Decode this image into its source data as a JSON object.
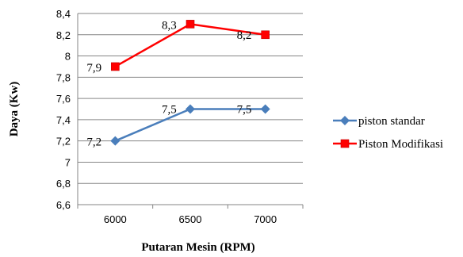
{
  "chart_data": {
    "type": "line",
    "categories": [
      "6000",
      "6500",
      "7000"
    ],
    "xlabel": "Putaran Mesin (RPM)",
    "ylabel": "Daya (Kw)",
    "ylim": [
      6.6,
      8.4
    ],
    "yticks": [
      "6,6",
      "6,8",
      "7",
      "7,2",
      "7,4",
      "7,6",
      "7,8",
      "8",
      "8,2",
      "8,4"
    ],
    "grid": "horizontal",
    "legend_position": "right",
    "series": [
      {
        "name": "piston standar",
        "values": [
          7.2,
          7.5,
          7.5
        ],
        "labels": [
          "7,2",
          "7,5",
          "7,5"
        ],
        "color": "#4a7ebb",
        "marker": "diamond"
      },
      {
        "name": "Piston Modifikasi",
        "values": [
          7.9,
          8.3,
          8.2
        ],
        "labels": [
          "7,9",
          "8,3",
          "8,2"
        ],
        "color": "#ff0000",
        "marker": "square"
      }
    ]
  }
}
